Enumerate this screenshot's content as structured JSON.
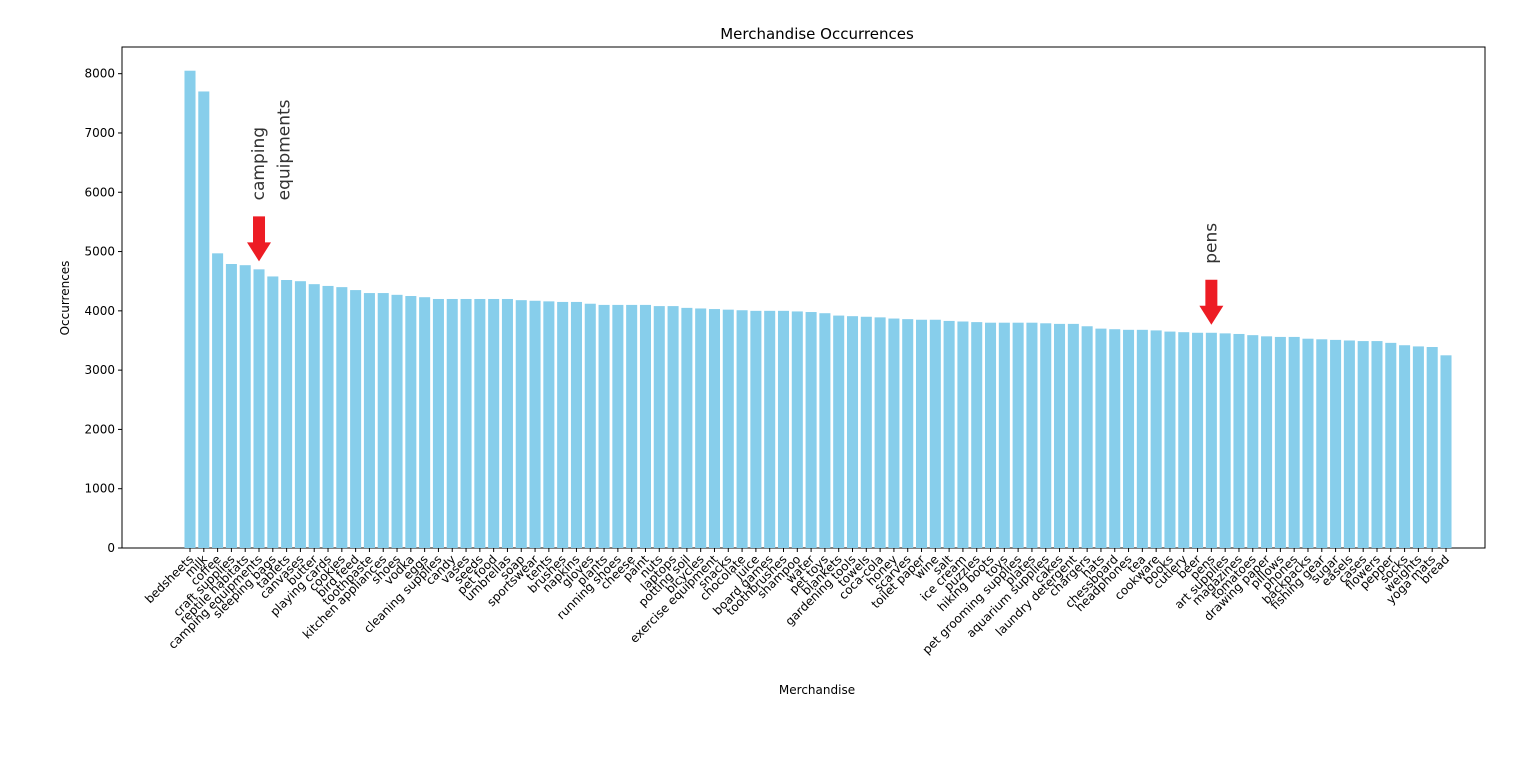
{
  "chart_data": {
    "type": "bar",
    "title": "Merchandise Occurrences",
    "x_label": "Merchandise",
    "y_label": "Occurrences",
    "categories": [
      "bedsheets",
      "milk",
      "coffee",
      "craft supplies",
      "reptile habitats",
      "camping equipments",
      "sleeping bags",
      "tablets",
      "canvases",
      "butter",
      "playing cards",
      "cookies",
      "bird feed",
      "toothpaste",
      "kitchen appliances",
      "shoes",
      "vodka",
      "eggs",
      "cleaning supplies",
      "candy",
      "vases",
      "seeds",
      "pet food",
      "umbrellas",
      "soap",
      "sportswear",
      "tents",
      "brushes",
      "napkins",
      "gloves",
      "plants",
      "running shoes",
      "cheese",
      "paint",
      "nuts",
      "laptops",
      "potting soil",
      "bicycles",
      "exercise equipment",
      "snacks",
      "chocolate",
      "juice",
      "board games",
      "toothbrushes",
      "shampoo",
      "water",
      "pet toys",
      "blankets",
      "gardening tools",
      "towels",
      "coca-cola",
      "honey",
      "scarves",
      "toilet paper",
      "wine",
      "salt",
      "ice cream",
      "puzzles",
      "hiking boots",
      "toys",
      "pet grooming supplies",
      "plates",
      "aquarium supplies",
      "cakes",
      "laundry detergent",
      "chargers",
      "hats",
      "chessboard",
      "headphones",
      "tea",
      "cookware",
      "books",
      "cutlery",
      "beer",
      "pens",
      "art supplies",
      "magazines",
      "tomatoes",
      "drawing paper",
      "pillows",
      "phones",
      "backpacks",
      "fishing gear",
      "sugar",
      "easels",
      "cases",
      "flowers",
      "pepper",
      "socks",
      "weights",
      "yoga mats",
      "bread"
    ],
    "values": [
      8050,
      7700,
      4970,
      4790,
      4770,
      4700,
      4580,
      4520,
      4500,
      4450,
      4420,
      4400,
      4350,
      4300,
      4300,
      4270,
      4250,
      4230,
      4200,
      4200,
      4200,
      4200,
      4200,
      4200,
      4180,
      4170,
      4160,
      4150,
      4150,
      4120,
      4100,
      4100,
      4100,
      4100,
      4080,
      4080,
      4050,
      4040,
      4030,
      4020,
      4010,
      4000,
      4000,
      4000,
      3990,
      3980,
      3960,
      3920,
      3910,
      3900,
      3890,
      3870,
      3860,
      3850,
      3850,
      3830,
      3820,
      3810,
      3800,
      3800,
      3800,
      3800,
      3790,
      3780,
      3780,
      3740,
      3700,
      3690,
      3680,
      3680,
      3670,
      3650,
      3640,
      3630,
      3630,
      3620,
      3610,
      3590,
      3570,
      3560,
      3560,
      3530,
      3520,
      3510,
      3500,
      3490,
      3490,
      3460,
      3420,
      3400,
      3390,
      3250
    ],
    "color": "#87ceeb",
    "annotation_color": "#ed1c24",
    "annotations": [
      "camping\nequipments",
      "pens"
    ],
    "ylim": [
      0,
      8450
    ],
    "yticks": [
      0,
      1000,
      2000,
      3000,
      4000,
      5000,
      6000,
      7000,
      8000
    ]
  }
}
